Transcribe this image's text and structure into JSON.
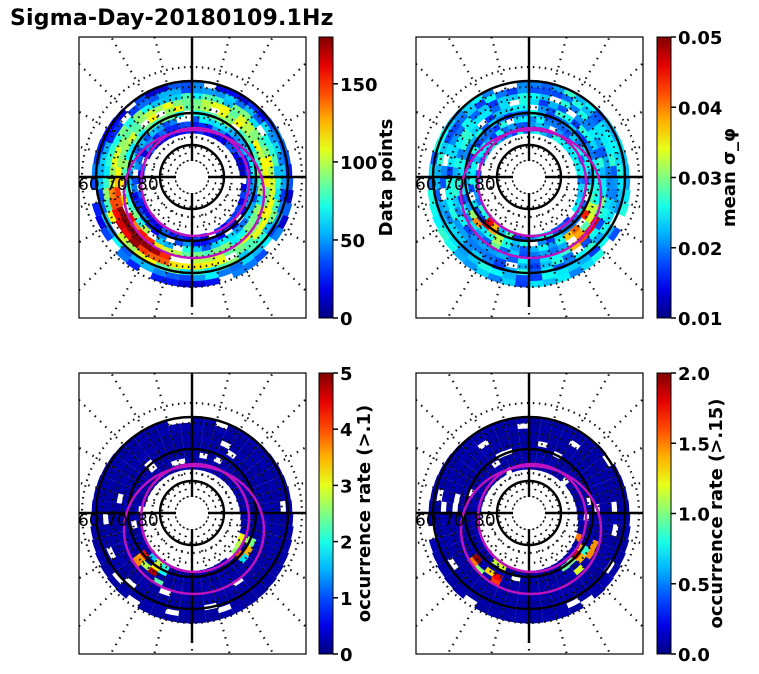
{
  "figure": {
    "title": "Sigma-Day-20180109.1Hz"
  },
  "chart_data": [
    {
      "type": "heatmap",
      "projection": "polar",
      "panel": "top-left",
      "title": "",
      "colormap": "jet",
      "colorbar": {
        "label": "Data points",
        "range": [
          0,
          180
        ],
        "ticks": [
          0,
          50,
          100,
          150
        ],
        "tick_labels": [
          "0",
          "50",
          "100",
          "150"
        ]
      },
      "latitude_labels": [
        "60",
        "70",
        "80"
      ],
      "ring_bands": [
        {
          "lat_range": [
            60,
            65
          ],
          "typical_value": 25
        },
        {
          "lat_range": [
            65,
            70
          ],
          "typical_value": 90,
          "dawn_value": 160
        },
        {
          "lat_range": [
            70,
            75
          ],
          "typical_value": 60
        }
      ],
      "oval_boundaries": [
        "magenta",
        "magenta"
      ]
    },
    {
      "type": "heatmap",
      "projection": "polar",
      "panel": "top-right",
      "colormap": "jet",
      "colorbar": {
        "label": "mean σ_φ",
        "range": [
          0.01,
          0.05
        ],
        "ticks": [
          0.01,
          0.02,
          0.03,
          0.04,
          0.05
        ],
        "tick_labels": [
          "0.01",
          "0.02",
          "0.03",
          "0.04",
          "0.05"
        ]
      },
      "latitude_labels": [
        "60",
        "70",
        "80"
      ],
      "ring_bands": [
        {
          "lat_range": [
            60,
            65
          ],
          "typical_value": 0.022
        },
        {
          "lat_range": [
            65,
            70
          ],
          "typical_value": 0.025,
          "dusk_value": 0.045
        },
        {
          "lat_range": [
            70,
            75
          ],
          "typical_value": 0.028
        }
      ]
    },
    {
      "type": "heatmap",
      "projection": "polar",
      "panel": "bottom-left",
      "colormap": "jet",
      "colorbar": {
        "label": "occurrence rate (>.1)",
        "range": [
          0,
          5
        ],
        "ticks": [
          0,
          1,
          2,
          3,
          4,
          5
        ],
        "tick_labels": [
          "0",
          "1",
          "2",
          "3",
          "4",
          "5"
        ]
      },
      "latitude_labels": [
        "60",
        "70",
        "80"
      ],
      "ring_bands": [
        {
          "lat_range": [
            60,
            75
          ],
          "typical_value": 0.1,
          "hotspot_values": [
            5,
            4,
            3,
            1
          ]
        }
      ]
    },
    {
      "type": "heatmap",
      "projection": "polar",
      "panel": "bottom-right",
      "colormap": "jet",
      "colorbar": {
        "label": "occurrence rate (>.15)",
        "range": [
          0.0,
          2.0
        ],
        "ticks": [
          0.0,
          0.5,
          1.0,
          1.5,
          2.0
        ],
        "tick_labels": [
          "0.0",
          "0.5",
          "1.0",
          "1.5",
          "2.0"
        ]
      },
      "latitude_labels": [
        "60",
        "70",
        "80"
      ],
      "ring_bands": [
        {
          "lat_range": [
            60,
            75
          ],
          "typical_value": 0.05,
          "hotspot_values": [
            2.0,
            1.4,
            0.8
          ]
        }
      ]
    }
  ]
}
